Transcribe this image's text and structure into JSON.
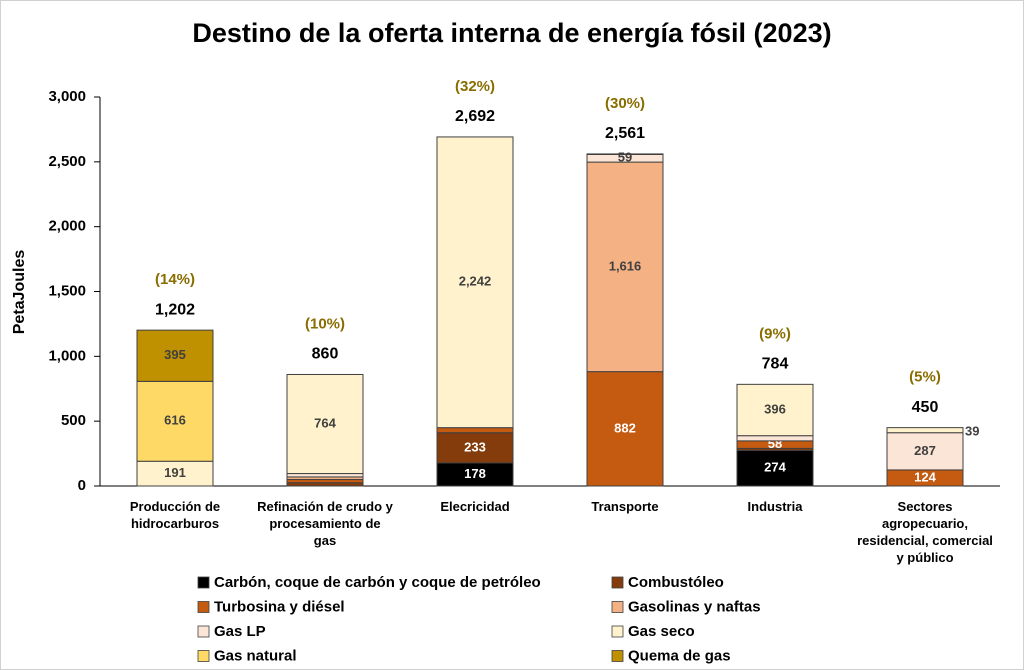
{
  "chart_data": {
    "type": "stacked-bar",
    "title": "Destino de la oferta interna de energía fósil (2023)",
    "y_label": "PetaJoules",
    "categories": [
      "Producción de\nhidrocarburos",
      "Refinación de crudo y\nprocesamiento de\ngas",
      "Elecricidad",
      "Transporte",
      "Industria",
      "Sectores\nagropecuario,\nresidencial, comercial\ny público"
    ],
    "series": [
      {
        "name": "Carbón, coque de carbón y coque de petróleo",
        "color": "#000000",
        "values": [
          0,
          0,
          178,
          0,
          274,
          0
        ],
        "value_labels": [
          null,
          null,
          "178",
          null,
          "274",
          null
        ]
      },
      {
        "name": "Combustóleo",
        "color": "#843c0c",
        "values": [
          0,
          25,
          233,
          0,
          16,
          0
        ],
        "value_labels": [
          null,
          null,
          "233",
          null,
          null,
          null
        ]
      },
      {
        "name": "Turbosina y diésel",
        "color": "#c55a11",
        "values": [
          0,
          25,
          39,
          882,
          58,
          124
        ],
        "value_labels": [
          null,
          null,
          null,
          "882",
          "58",
          "124"
        ]
      },
      {
        "name": "Gasolinas y naftas",
        "color": "#f4b183",
        "values": [
          0,
          20,
          0,
          1616,
          0,
          0
        ],
        "value_labels": [
          null,
          null,
          null,
          "1,616",
          null,
          null
        ]
      },
      {
        "name": "Gas LP",
        "color": "#fbe5d6",
        "values": [
          0,
          26,
          0,
          59,
          40,
          287
        ],
        "value_labels": [
          null,
          null,
          null,
          "59",
          null,
          "287"
        ]
      },
      {
        "name": "Gas seco",
        "color": "#fff2cc",
        "values": [
          191,
          764,
          2242,
          4,
          396,
          39
        ],
        "value_labels": [
          "191",
          "764",
          "2,242",
          null,
          "396",
          "39"
        ]
      },
      {
        "name": "Gas natural",
        "color": "#ffd966",
        "values": [
          616,
          0,
          0,
          0,
          0,
          0
        ],
        "value_labels": [
          "616",
          null,
          null,
          null,
          null,
          null
        ]
      },
      {
        "name": "Quema de gas",
        "color": "#bf9000",
        "values": [
          395,
          0,
          0,
          0,
          0,
          0
        ],
        "value_labels": [
          "395",
          null,
          null,
          null,
          null,
          null
        ]
      }
    ],
    "totals": [
      1202,
      860,
      2692,
      2561,
      784,
      450
    ],
    "total_labels": [
      "1,202",
      "860",
      "2,692",
      "2,561",
      "784",
      "450"
    ],
    "shares": [
      14,
      10,
      32,
      30,
      9,
      5
    ],
    "share_labels": [
      "(14%)",
      "(10%)",
      "(32%)",
      "(30%)",
      "(9%)",
      "(5%)"
    ],
    "ylim": [
      0,
      3000
    ],
    "yticks": [
      0,
      500,
      {
        "value": 1000,
        "label": "1,000"
      },
      {
        "value": 1500,
        "label": "1,500"
      },
      {
        "value": 2000,
        "label": "2,000"
      },
      {
        "value": 2500,
        "label": "2,500"
      },
      {
        "value": 3000,
        "label": "3,000"
      }
    ],
    "grid": false,
    "legend": "bottom"
  }
}
